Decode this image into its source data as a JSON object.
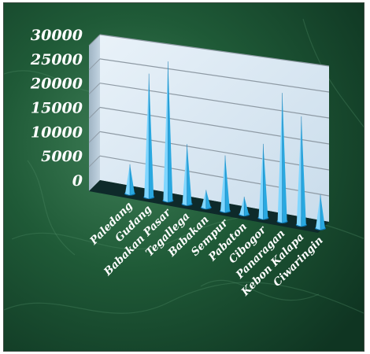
{
  "chart_data": {
    "type": "bar",
    "bar_shape": "cone",
    "perspective": "3d",
    "categories": [
      "Paledang",
      "Gudang",
      "Babakan Pasar",
      "Tegallega",
      "Babakan",
      "Sempur",
      "Pabaton",
      "Cibogor",
      "Panaragan",
      "Kebon Kalapa",
      "Ciwaringin"
    ],
    "values": [
      6000,
      25000,
      28000,
      12000,
      3500,
      11000,
      3500,
      14500,
      25000,
      21000,
      6500
    ],
    "ylim": [
      0,
      30000
    ],
    "yticks": [
      "0",
      "5000",
      "10000",
      "15000",
      "20000",
      "25000",
      "30000"
    ],
    "grid": true,
    "legend": "none",
    "title": "",
    "xlabel": "",
    "ylabel": "",
    "colors": {
      "bar": "#29a8e0",
      "bar_dark": "#0b6fa8",
      "bar_light": "#7fd6ff",
      "wall": "#d8e8f4",
      "floor": "#0e2a2a",
      "background": "#1f5a37"
    }
  }
}
